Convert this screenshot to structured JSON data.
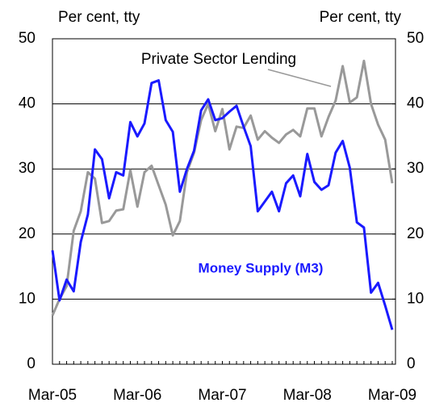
{
  "chart_data": {
    "type": "line",
    "y_label": "Per cent, tty",
    "y2_label": "Per cent, tty",
    "categories": [
      "Mar-05",
      null,
      null,
      null,
      null,
      null,
      null,
      null,
      null,
      null,
      null,
      null,
      "Mar-06",
      null,
      null,
      null,
      null,
      null,
      null,
      null,
      null,
      null,
      null,
      null,
      "Mar-07",
      null,
      null,
      null,
      null,
      null,
      null,
      null,
      null,
      null,
      null,
      null,
      "Mar-08",
      null,
      null,
      null,
      null,
      null,
      null,
      null,
      null,
      null,
      null,
      null,
      "Mar-09"
    ],
    "series": [
      {
        "name": "Private Sector Lending",
        "color": "#999999",
        "values": [
          7.5,
          10,
          12,
          20.5,
          23.5,
          29.5,
          28.5,
          21.7,
          22,
          23.6,
          23.8,
          29.8,
          24.2,
          29.5,
          30.5,
          27.5,
          24.5,
          19.8,
          22,
          29.5,
          32.5,
          37.5,
          40,
          35.8,
          39.2,
          33,
          36.5,
          36.3,
          38.2,
          34.5,
          35.8,
          34.8,
          34,
          35.3,
          36,
          35,
          39.3,
          39.3,
          35,
          38,
          40.5,
          45.8,
          40.2,
          41,
          46.6,
          40,
          36.8,
          34.5,
          27.8
        ]
      },
      {
        "name": "Money Supply (M3)",
        "color": "#1a1aff",
        "values": [
          17.5,
          9.8,
          13,
          11.2,
          18.8,
          23,
          33,
          31.5,
          25.5,
          29.5,
          29,
          37.2,
          35,
          37,
          43.2,
          43.6,
          37.5,
          35.7,
          26.5,
          30,
          32.8,
          39,
          40.7,
          37.5,
          37.8,
          38.8,
          39.7,
          36.5,
          33.5,
          23.5,
          25,
          26.5,
          23.5,
          27.8,
          29,
          25.8,
          32.3,
          28,
          26.8,
          27.5,
          32.5,
          34.3,
          30.2,
          21.8,
          21,
          11,
          12.5,
          9,
          5.3
        ]
      }
    ],
    "ylim": [
      0,
      50
    ],
    "yticks": [
      0,
      10,
      20,
      30,
      40,
      50
    ],
    "y2lim": [
      0,
      50
    ],
    "y2ticks": [
      0,
      10,
      20,
      30,
      40,
      50
    ],
    "grid": true
  }
}
